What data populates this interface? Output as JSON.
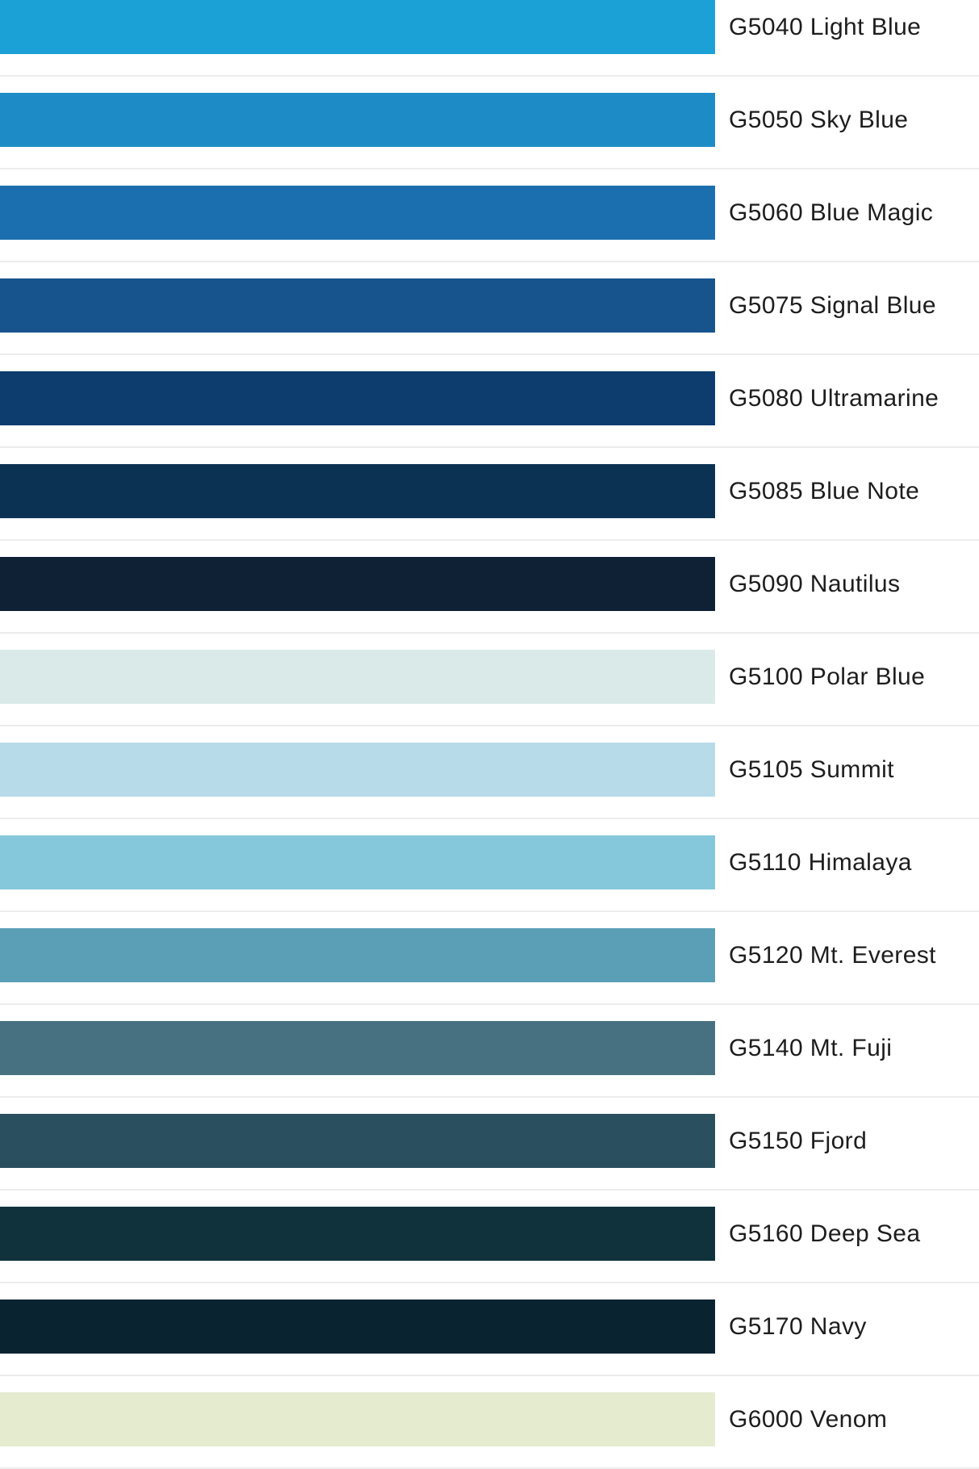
{
  "page": {
    "background": "#ffffff",
    "divider_color": "#ececec",
    "text_color": "#1d1d1d"
  },
  "color_list": {
    "items": [
      {
        "label": "G5040 Light Blue",
        "hex": "#1BA1D5"
      },
      {
        "label": "G5050 Sky Blue",
        "hex": "#1D8CC6"
      },
      {
        "label": "G5060 Blue Magic",
        "hex": "#1C6FAF"
      },
      {
        "label": "G5075 Signal Blue",
        "hex": "#17538D"
      },
      {
        "label": "G5080 Ultramarine",
        "hex": "#0D3C6E"
      },
      {
        "label": "G5085 Blue Note",
        "hex": "#0B3253"
      },
      {
        "label": "G5090 Nautilus",
        "hex": "#0F2235"
      },
      {
        "label": "G5100 Polar Blue",
        "hex": "#D9EAE8"
      },
      {
        "label": "G5105 Summit",
        "hex": "#B7DBE9"
      },
      {
        "label": "G5110 Himalaya",
        "hex": "#85C8DC"
      },
      {
        "label": "G5120 Mt. Everest",
        "hex": "#5A9FB5"
      },
      {
        "label": "G5140 Mt. Fuji",
        "hex": "#477181"
      },
      {
        "label": "G5150 Fjord",
        "hex": "#2A4F5E"
      },
      {
        "label": "G5160 Deep Sea",
        "hex": "#0F323C"
      },
      {
        "label": "G5170 Navy",
        "hex": "#0A2331"
      },
      {
        "label": "G6000 Venom",
        "hex": "#E4EBCF"
      }
    ]
  }
}
